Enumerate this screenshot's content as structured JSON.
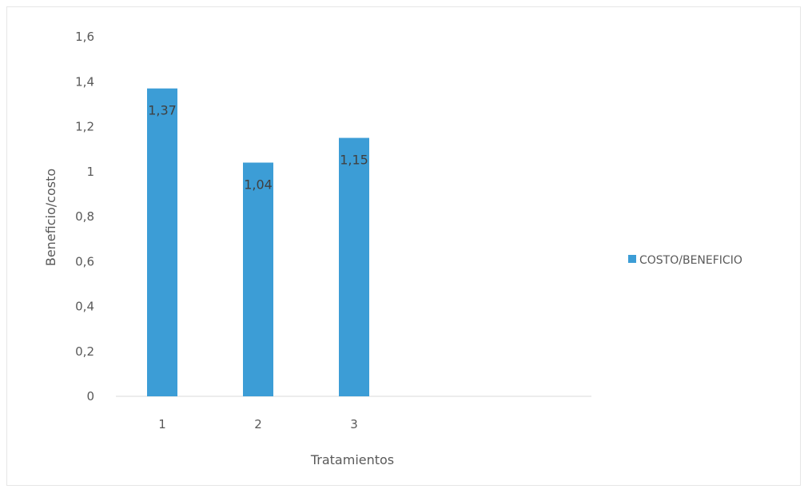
{
  "chart_data": {
    "type": "bar",
    "categories": [
      "1",
      "2",
      "3"
    ],
    "series": [
      {
        "name": "COSTO/BENEFICIO",
        "values": [
          1.37,
          1.04,
          1.15
        ],
        "labels": [
          "1,37",
          "1,04",
          "1,15"
        ],
        "color": "#3c9dd6"
      }
    ],
    "title": "",
    "xlabel": "Tratamientos",
    "ylabel": "Beneficio/costo",
    "ylim": [
      0,
      1.6
    ],
    "yticks": [
      0,
      0.2,
      0.4,
      0.6,
      0.8,
      1,
      1.2,
      1.4,
      1.6
    ],
    "ytick_labels": [
      "0",
      "0,2",
      "0,4",
      "0,6",
      "0,8",
      "1",
      "1,2",
      "1,4",
      "1,6"
    ],
    "grid": false,
    "legend_position": "right"
  }
}
